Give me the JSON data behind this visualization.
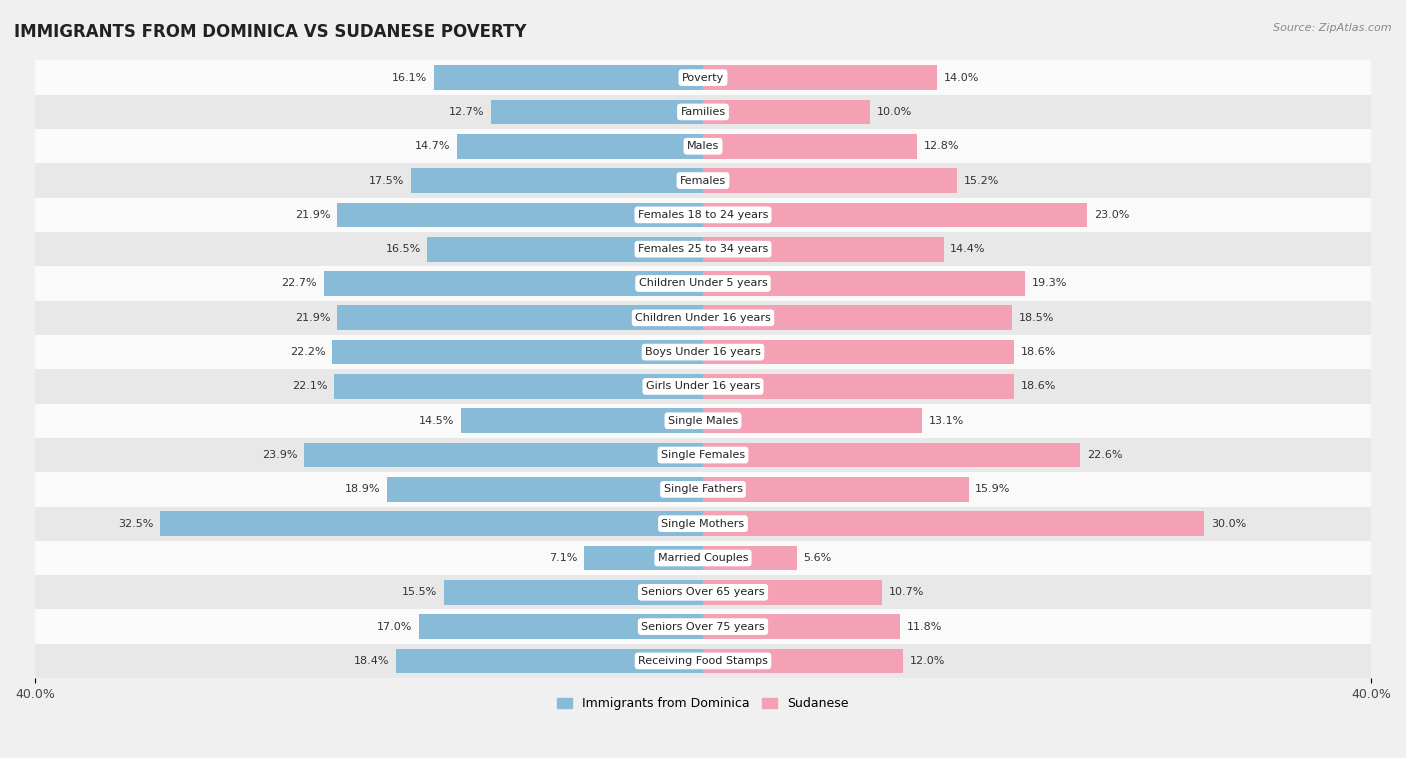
{
  "title": "IMMIGRANTS FROM DOMINICA VS SUDANESE POVERTY",
  "source": "Source: ZipAtlas.com",
  "categories": [
    "Poverty",
    "Families",
    "Males",
    "Females",
    "Females 18 to 24 years",
    "Females 25 to 34 years",
    "Children Under 5 years",
    "Children Under 16 years",
    "Boys Under 16 years",
    "Girls Under 16 years",
    "Single Males",
    "Single Females",
    "Single Fathers",
    "Single Mothers",
    "Married Couples",
    "Seniors Over 65 years",
    "Seniors Over 75 years",
    "Receiving Food Stamps"
  ],
  "left_values": [
    16.1,
    12.7,
    14.7,
    17.5,
    21.9,
    16.5,
    22.7,
    21.9,
    22.2,
    22.1,
    14.5,
    23.9,
    18.9,
    32.5,
    7.1,
    15.5,
    17.0,
    18.4
  ],
  "right_values": [
    14.0,
    10.0,
    12.8,
    15.2,
    23.0,
    14.4,
    19.3,
    18.5,
    18.6,
    18.6,
    13.1,
    22.6,
    15.9,
    30.0,
    5.6,
    10.7,
    11.8,
    12.0
  ],
  "left_color": "#88bbd8",
  "right_color": "#f4a0b5",
  "left_label": "Immigrants from Dominica",
  "right_label": "Sudanese",
  "axis_max": 40.0,
  "background_color": "#f0f0f0",
  "row_bg_light": "#fafafa",
  "row_bg_dark": "#e8e8e8",
  "title_fontsize": 12,
  "bar_height": 0.72,
  "label_fontsize": 8,
  "value_fontsize": 8
}
